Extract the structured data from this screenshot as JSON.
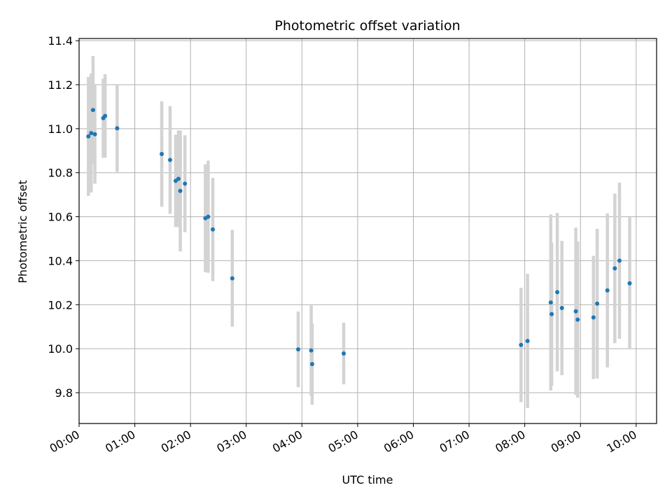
{
  "chart_data": {
    "type": "scatter",
    "title": "Photometric offset variation",
    "xlabel": "UTC time",
    "ylabel": "Photometric offset",
    "x_unit": "UTC hours",
    "xlim": [
      "00:00",
      "10:22"
    ],
    "ylim": [
      9.66,
      11.41
    ],
    "xticks": [
      "00:00",
      "01:00",
      "02:00",
      "03:00",
      "04:00",
      "05:00",
      "06:00",
      "07:00",
      "08:00",
      "09:00",
      "10:00"
    ],
    "yticks": [
      "9.8",
      "10.0",
      "10.2",
      "10.4",
      "10.6",
      "10.8",
      "11.0",
      "11.2",
      "11.4"
    ],
    "grid": true,
    "colors": {
      "points": "#1f77b4",
      "errorbars": "#d3d3d3",
      "grid": "#b0b0b0"
    },
    "series": [
      {
        "points": [
          {
            "x": "00:10",
            "y": 10.965,
            "err": 0.27
          },
          {
            "x": "00:13",
            "y": 10.98,
            "err": 0.27
          },
          {
            "x": "00:15",
            "y": 11.085,
            "err": 0.245
          },
          {
            "x": "00:17",
            "y": 10.975,
            "err": 0.225
          },
          {
            "x": "00:26",
            "y": 11.048,
            "err": 0.18
          },
          {
            "x": "00:28",
            "y": 11.058,
            "err": 0.19
          },
          {
            "x": "00:41",
            "y": 11.002,
            "err": 0.198
          },
          {
            "x": "01:29",
            "y": 10.885,
            "err": 0.24
          },
          {
            "x": "01:38",
            "y": 10.858,
            "err": 0.245
          },
          {
            "x": "01:44",
            "y": 10.763,
            "err": 0.21
          },
          {
            "x": "01:47",
            "y": 10.772,
            "err": 0.22
          },
          {
            "x": "01:49",
            "y": 10.717,
            "err": 0.275
          },
          {
            "x": "01:54",
            "y": 10.75,
            "err": 0.22
          },
          {
            "x": "02:16",
            "y": 10.593,
            "err": 0.245
          },
          {
            "x": "02:19",
            "y": 10.6,
            "err": 0.255
          },
          {
            "x": "02:24",
            "y": 10.542,
            "err": 0.235
          },
          {
            "x": "02:45",
            "y": 10.32,
            "err": 0.22
          },
          {
            "x": "03:56",
            "y": 9.997,
            "err": 0.172
          },
          {
            "x": "04:10",
            "y": 9.992,
            "err": 0.205
          },
          {
            "x": "04:11",
            "y": 9.93,
            "err": 0.185
          },
          {
            "x": "04:45",
            "y": 9.978,
            "err": 0.14
          },
          {
            "x": "07:56",
            "y": 10.017,
            "err": 0.26
          },
          {
            "x": "08:03",
            "y": 10.035,
            "err": 0.305
          },
          {
            "x": "08:28",
            "y": 10.21,
            "err": 0.4
          },
          {
            "x": "08:29",
            "y": 10.157,
            "err": 0.325
          },
          {
            "x": "08:35",
            "y": 10.257,
            "err": 0.36
          },
          {
            "x": "08:40",
            "y": 10.185,
            "err": 0.305
          },
          {
            "x": "08:55",
            "y": 10.17,
            "err": 0.38
          },
          {
            "x": "08:57",
            "y": 10.132,
            "err": 0.355
          },
          {
            "x": "09:14",
            "y": 10.142,
            "err": 0.28
          },
          {
            "x": "09:18",
            "y": 10.205,
            "err": 0.34
          },
          {
            "x": "09:29",
            "y": 10.265,
            "err": 0.35
          },
          {
            "x": "09:37",
            "y": 10.365,
            "err": 0.34
          },
          {
            "x": "09:42",
            "y": 10.4,
            "err": 0.355
          },
          {
            "x": "09:53",
            "y": 10.297,
            "err": 0.3
          }
        ]
      }
    ]
  }
}
